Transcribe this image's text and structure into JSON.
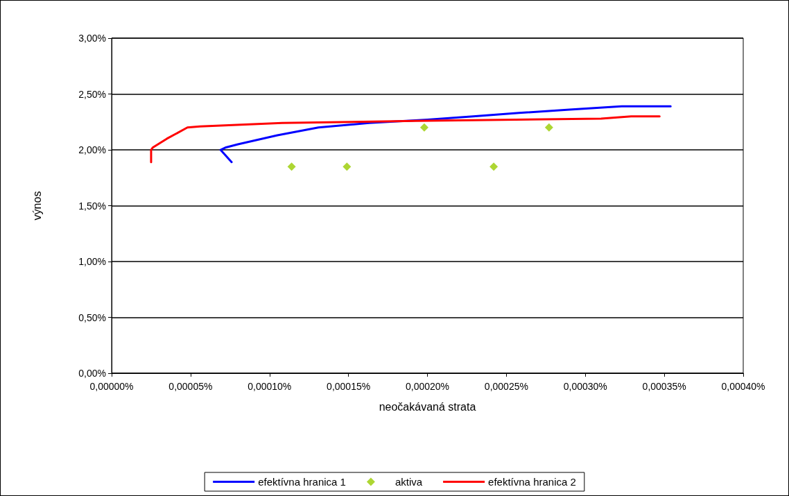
{
  "chart_data": {
    "type": "line",
    "xlabel": "neočakávaná strata",
    "ylabel": "výnos",
    "xlim": [
      0,
      0.0004
    ],
    "ylim": [
      0,
      3
    ],
    "xticks": [
      {
        "value": 0,
        "label": "0,00000%"
      },
      {
        "value": 5e-05,
        "label": "0,00005%"
      },
      {
        "value": 0.0001,
        "label": "0,00010%"
      },
      {
        "value": 0.00015,
        "label": "0,00015%"
      },
      {
        "value": 0.0002,
        "label": "0,00020%"
      },
      {
        "value": 0.00025,
        "label": "0,00025%"
      },
      {
        "value": 0.0003,
        "label": "0,00030%"
      },
      {
        "value": 0.00035,
        "label": "0,00035%"
      },
      {
        "value": 0.0004,
        "label": "0,00040%"
      }
    ],
    "yticks": [
      {
        "value": 0,
        "label": "0,00%"
      },
      {
        "value": 0.5,
        "label": "0,50%"
      },
      {
        "value": 1,
        "label": "1,00%"
      },
      {
        "value": 1.5,
        "label": "1,50%"
      },
      {
        "value": 2,
        "label": "2,00%"
      },
      {
        "value": 2.5,
        "label": "2,50%"
      },
      {
        "value": 3,
        "label": "3,00%"
      }
    ],
    "grid": "y",
    "legend": "bottom",
    "line_style": "solid",
    "series": [
      {
        "name": "efektívna hranica 1",
        "color": "#0000ff",
        "marker": "none",
        "x": [
          7.6e-05,
          6.9e-05,
          7.2e-05,
          8e-05,
          0.000105,
          0.000131,
          0.000163,
          0.0002,
          0.000229,
          0.000258,
          0.00029,
          0.000323,
          0.000354
        ],
        "values": [
          1.89,
          2.0,
          2.02,
          2.05,
          2.13,
          2.2,
          2.24,
          2.27,
          2.3,
          2.33,
          2.36,
          2.39,
          2.39
        ]
      },
      {
        "name": "aktiva",
        "type": "scatter",
        "color": "#99cc00",
        "marker": "diamond",
        "x": [
          0.000114,
          0.000149,
          0.000198,
          0.000242,
          0.000277
        ],
        "values": [
          1.85,
          1.85,
          2.2,
          1.85,
          2.2
        ]
      },
      {
        "name": "efektívna hranica 2",
        "color": "#ff0000",
        "marker": "none",
        "x": [
          2.5e-05,
          2.5e-05,
          2.6e-05,
          3.5e-05,
          4.8e-05,
          5.6e-05,
          0.000108,
          0.000193,
          0.00031,
          0.000329,
          0.000347
        ],
        "values": [
          1.89,
          2.0,
          2.02,
          2.1,
          2.2,
          2.21,
          2.24,
          2.26,
          2.28,
          2.3,
          2.3
        ]
      }
    ]
  }
}
